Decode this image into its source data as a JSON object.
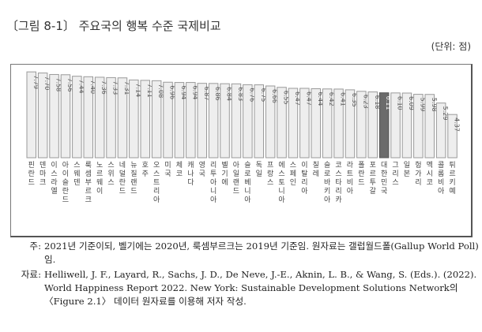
{
  "title": "〔그림 8-1〕 주요국의 행복 수준 국제비교",
  "unit": "(단위: 점)",
  "colors": {
    "bar": "#eeeeee",
    "bar_border": "#9a9a9a",
    "highlight": "#6b6b6b"
  },
  "chart_data": {
    "type": "bar",
    "highlight": "대한민국",
    "categories": [
      "핀란드",
      "덴마크",
      "이스라엘",
      "아이슬란드",
      "스웨덴",
      "룩셈부르크",
      "노르웨이",
      "스위스",
      "네덜란드",
      "뉴질랜드",
      "호주",
      "오스트리아",
      "미국",
      "체코",
      "캐나다",
      "영국",
      "리투아니아",
      "벨기에",
      "아일랜드",
      "슬로베니아",
      "독일",
      "프랑스",
      "에스토니아",
      "스페인",
      "이탈리아",
      "칠레",
      "슬로바키아",
      "코스타리카",
      "라트비아",
      "폴란드",
      "포르투갈",
      "대한민국",
      "그리스",
      "일본",
      "헝가리",
      "멕시코",
      "콜롬비아",
      "튀르키예"
    ],
    "values": [
      7.79,
      7.7,
      7.58,
      7.56,
      7.44,
      7.4,
      7.36,
      7.33,
      7.31,
      7.14,
      7.11,
      7.08,
      6.96,
      6.94,
      6.94,
      6.87,
      6.86,
      6.84,
      6.83,
      6.76,
      6.75,
      6.66,
      6.55,
      6.47,
      6.47,
      6.44,
      6.42,
      6.41,
      6.35,
      6.23,
      6.18,
      6.11,
      6.1,
      6.09,
      5.99,
      5.98,
      5.29,
      4.37
    ],
    "value_labels": [
      "7.79",
      "7.70",
      "7.58",
      "7.56",
      "7.44",
      "7.40",
      "7.36",
      "7.33",
      "7.31",
      "7.14",
      "7.11",
      "7.08",
      "6.96",
      "6.94",
      "6.94",
      "6.87",
      "6.86",
      "6.84",
      "6.83",
      "6.76",
      "6.75",
      "6.66",
      "6.55",
      "6.47",
      "6.47",
      "6.44",
      "6.42",
      "6.41",
      "6.35",
      "6.23",
      "6.18",
      "6.11",
      "6.10",
      "6.09",
      "5.99",
      "5.98",
      "5.29",
      "4.37"
    ]
  },
  "notes": {
    "note_label": "주:",
    "note_text": "2021년 기준이되, 벨기에는 2020년, 룩셈부르크는 2019년 기준임. 원자료는 갤럽월드폴(Gallup World Poll)임.",
    "source_label": "자료:",
    "source_text": "Helliwell, J. F., Layard, R., Sachs, J. D., De Neve, J.-E., Aknin, L. B., & Wang, S. (Eds.). (2022). World Happiness Report 2022. New York: Sustainable Development Solutions Network의 〈Figure 2.1〉 데이터 원자료를 이용해 저자 작성."
  }
}
